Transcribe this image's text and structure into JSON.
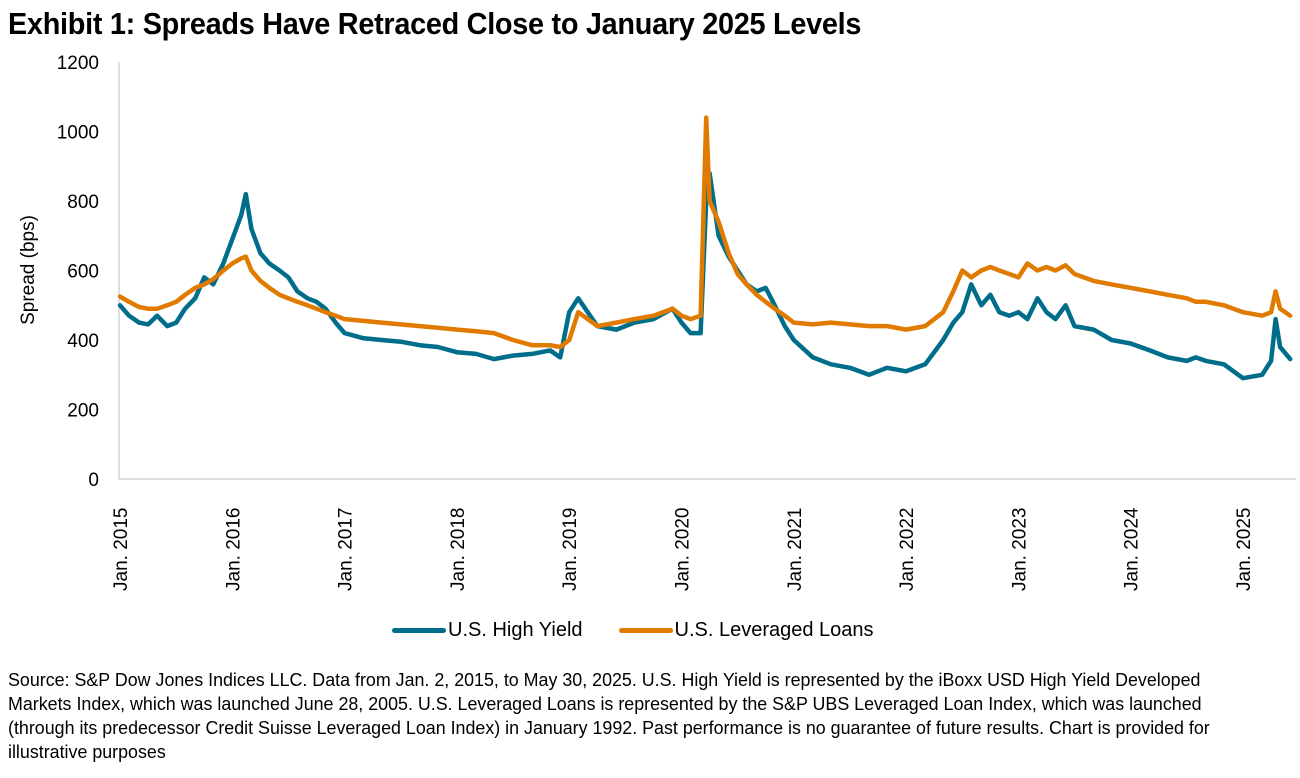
{
  "title": "Exhibit 1: Spreads Have Retraced Close to January 2025 Levels",
  "source_note": "Source: S&P Dow Jones Indices LLC. Data from Jan. 2, 2015, to May 30, 2025. U.S. High Yield is represented by the iBoxx USD High Yield Developed Markets Index, which was launched June 28, 2005. U.S. Leveraged Loans is represented by the S&P UBS Leveraged Loan Index, which was launched (through its predecessor Credit Suisse Leveraged Loan Index) in January 1992. Past performance is no guarantee of future results. Chart is provided for illustrative purposes",
  "chart_data": {
    "type": "line",
    "title": "Exhibit 1: Spreads Have Retraced Close to January 2025 Levels",
    "xlabel": "",
    "ylabel": "Spread (bps)",
    "ylim": [
      0,
      1200
    ],
    "yticks": [
      0,
      200,
      400,
      600,
      800,
      1000,
      1200
    ],
    "xlim": [
      2015.0,
      2025.42
    ],
    "xticks": [
      2015,
      2016,
      2017,
      2018,
      2019,
      2020,
      2021,
      2022,
      2023,
      2024,
      2025
    ],
    "xtick_labels": [
      "Jan. 2015",
      "Jan. 2016",
      "Jan. 2017",
      "Jan. 2018",
      "Jan. 2019",
      "Jan. 2020",
      "Jan. 2021",
      "Jan. 2022",
      "Jan. 2023",
      "Jan. 2024",
      "Jan. 2025"
    ],
    "grid": false,
    "legend_position": "bottom",
    "x": [
      2015.0,
      2015.08,
      2015.17,
      2015.25,
      2015.33,
      2015.42,
      2015.5,
      2015.58,
      2015.67,
      2015.75,
      2015.83,
      2015.92,
      2016.0,
      2016.08,
      2016.12,
      2016.17,
      2016.25,
      2016.33,
      2016.42,
      2016.5,
      2016.58,
      2016.67,
      2016.75,
      2016.83,
      2016.92,
      2017.0,
      2017.17,
      2017.33,
      2017.5,
      2017.67,
      2017.83,
      2018.0,
      2018.17,
      2018.33,
      2018.5,
      2018.67,
      2018.83,
      2018.92,
      2019.0,
      2019.08,
      2019.25,
      2019.42,
      2019.58,
      2019.75,
      2019.92,
      2020.0,
      2020.08,
      2020.17,
      2020.22,
      2020.25,
      2020.33,
      2020.42,
      2020.5,
      2020.58,
      2020.67,
      2020.75,
      2020.83,
      2020.92,
      2021.0,
      2021.17,
      2021.33,
      2021.5,
      2021.67,
      2021.83,
      2022.0,
      2022.17,
      2022.33,
      2022.42,
      2022.5,
      2022.58,
      2022.67,
      2022.75,
      2022.83,
      2022.92,
      2023.0,
      2023.08,
      2023.17,
      2023.25,
      2023.33,
      2023.42,
      2023.5,
      2023.67,
      2023.83,
      2024.0,
      2024.17,
      2024.33,
      2024.5,
      2024.58,
      2024.67,
      2024.83,
      2025.0,
      2025.17,
      2025.25,
      2025.29,
      2025.33,
      2025.42
    ],
    "series": [
      {
        "name": "U.S. High Yield",
        "color": "#006e8a",
        "values": [
          500,
          470,
          450,
          445,
          470,
          440,
          450,
          490,
          520,
          580,
          560,
          620,
          690,
          760,
          820,
          720,
          650,
          620,
          600,
          580,
          540,
          520,
          510,
          490,
          450,
          420,
          405,
          400,
          395,
          385,
          380,
          365,
          360,
          345,
          355,
          360,
          370,
          350,
          480,
          520,
          440,
          430,
          450,
          460,
          490,
          450,
          420,
          420,
          800,
          880,
          700,
          640,
          600,
          560,
          540,
          550,
          500,
          440,
          400,
          350,
          330,
          320,
          300,
          320,
          310,
          330,
          400,
          450,
          480,
          560,
          500,
          530,
          480,
          470,
          480,
          460,
          520,
          480,
          460,
          500,
          440,
          430,
          400,
          390,
          370,
          350,
          340,
          350,
          340,
          330,
          290,
          300,
          340,
          460,
          380,
          345
        ]
      },
      {
        "name": "U.S. Leveraged Loans",
        "color": "#e07b00",
        "values": [
          525,
          510,
          495,
          490,
          490,
          500,
          510,
          530,
          550,
          560,
          575,
          600,
          620,
          635,
          640,
          600,
          570,
          550,
          530,
          520,
          510,
          500,
          490,
          480,
          470,
          460,
          455,
          450,
          445,
          440,
          435,
          430,
          425,
          420,
          400,
          385,
          385,
          380,
          400,
          480,
          440,
          450,
          460,
          470,
          490,
          470,
          460,
          470,
          1040,
          800,
          740,
          650,
          590,
          560,
          530,
          510,
          490,
          470,
          450,
          445,
          450,
          445,
          440,
          440,
          430,
          440,
          480,
          540,
          600,
          580,
          600,
          610,
          600,
          590,
          580,
          620,
          600,
          610,
          600,
          615,
          590,
          570,
          560,
          550,
          540,
          530,
          520,
          510,
          510,
          500,
          480,
          470,
          480,
          540,
          490,
          470
        ]
      }
    ]
  }
}
